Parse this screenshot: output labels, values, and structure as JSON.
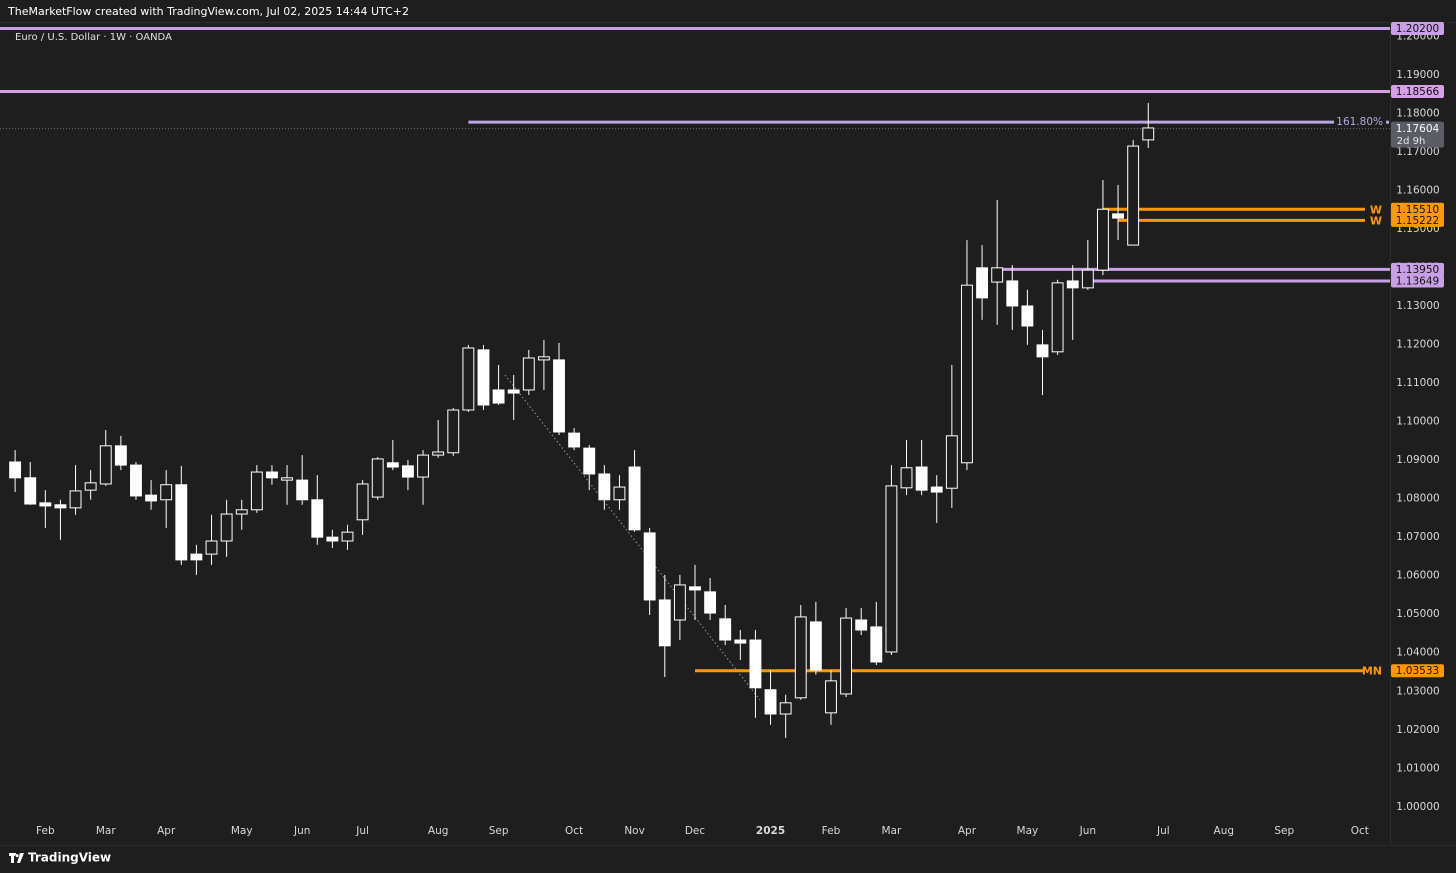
{
  "header": {
    "attribution": "TheMarketFlow created with TradingView.com, Jul 02, 2025 14:44 UTC+2"
  },
  "footer": {
    "brand": "TradingView"
  },
  "chart_data": {
    "type": "candlestick",
    "title": "Euro / U.S. Dollar · 1W · OANDA",
    "x": [
      0,
      1,
      2,
      3,
      4,
      5,
      6,
      7,
      8,
      9,
      10,
      11,
      12,
      13,
      14,
      15,
      16,
      17,
      18,
      19,
      20,
      21,
      22,
      23,
      24,
      25,
      26,
      27,
      28,
      29,
      30,
      31,
      32,
      33,
      34,
      35,
      36,
      37,
      38,
      39,
      40,
      41,
      42,
      43,
      44,
      45,
      46,
      47,
      48,
      49,
      50,
      51,
      52,
      53,
      54,
      55,
      56,
      57,
      58,
      59,
      60,
      61,
      62,
      63,
      64,
      65,
      66,
      67,
      68,
      69,
      70,
      71,
      72,
      73,
      74,
      75
    ],
    "open": [
      1.0895,
      1.0854,
      1.0789,
      1.0784,
      1.0776,
      1.0822,
      1.0838,
      1.0937,
      1.0887,
      1.0809,
      1.0797,
      1.0836,
      1.0656,
      1.0656,
      1.069,
      1.076,
      1.0771,
      1.0869,
      1.0848,
      1.0848,
      1.0797,
      1.07,
      1.069,
      1.0745,
      1.0804,
      1.0893,
      1.0885,
      1.0856,
      1.0913,
      1.0919,
      1.103,
      1.1186,
      1.1082,
      1.1082,
      1.1082,
      1.116,
      1.116,
      1.097,
      1.0931,
      1.0864,
      1.0797,
      1.0882,
      1.0711,
      1.0537,
      1.0485,
      1.0571,
      1.0558,
      1.0488,
      1.0433,
      1.0433,
      1.0304,
      1.0241,
      1.0283,
      1.048,
      1.0244,
      1.0293,
      1.0485,
      1.0467,
      1.0402,
      1.0828,
      1.0882,
      1.083,
      1.0827,
      1.0893,
      1.1399,
      1.1362,
      1.1365,
      1.13,
      1.1199,
      1.1181,
      1.1365,
      1.1347,
      1.1393,
      1.1539,
      1.1458,
      1.1731
    ],
    "high": [
      1.0926,
      1.0895,
      1.0822,
      1.0797,
      1.0887,
      1.0874,
      1.0978,
      1.0963,
      1.0895,
      1.0848,
      1.0874,
      1.0885,
      1.068,
      1.0758,
      1.0797,
      1.0797,
      1.0887,
      1.0887,
      1.0887,
      1.0913,
      1.0861,
      1.0719,
      1.0732,
      1.0848,
      1.0908,
      1.0952,
      1.09,
      1.0926,
      1.1004,
      1.1035,
      1.1199,
      1.1199,
      1.1147,
      1.1121,
      1.1186,
      1.1212,
      1.1204,
      1.0983,
      1.0939,
      1.0887,
      1.0861,
      1.0926,
      1.0724,
      1.0602,
      1.0602,
      1.0628,
      1.0594,
      1.0524,
      1.0459,
      1.0459,
      1.0355,
      1.0291,
      1.0524,
      1.0532,
      1.0355,
      1.0516,
      1.0516,
      1.0532,
      1.0887,
      1.0952,
      1.0952,
      1.0861,
      1.1147,
      1.1471,
      1.1458,
      1.1575,
      1.1406,
      1.1342,
      1.1238,
      1.1368,
      1.1406,
      1.1471,
      1.1627,
      1.1614,
      1.1731,
      1.1827
    ],
    "low": [
      1.0817,
      1.0784,
      1.0724,
      1.0693,
      1.0758,
      1.0797,
      1.0833,
      1.0874,
      1.0797,
      1.0771,
      1.0724,
      1.0628,
      1.0602,
      1.0628,
      1.0649,
      1.0719,
      1.0763,
      1.0836,
      1.0784,
      1.0784,
      1.068,
      1.0672,
      1.0667,
      1.0706,
      1.0797,
      1.0874,
      1.0822,
      1.0784,
      1.0906,
      1.0911,
      1.1025,
      1.103,
      1.1043,
      1.1004,
      1.1069,
      1.1082,
      1.0965,
      1.0926,
      1.0822,
      1.0771,
      1.0771,
      1.0714,
      1.0498,
      1.0337,
      1.0433,
      1.0485,
      1.0485,
      1.042,
      1.0381,
      1.0231,
      1.0213,
      1.0179,
      1.0278,
      1.0343,
      1.0213,
      1.0285,
      1.0446,
      1.0368,
      1.0394,
      1.0809,
      1.0809,
      1.0737,
      1.0776,
      1.0874,
      1.1264,
      1.1251,
      1.1238,
      1.1199,
      1.1069,
      1.1173,
      1.1212,
      1.1342,
      1.138,
      1.1471,
      1.1458,
      1.171
    ],
    "close": [
      1.0854,
      1.0786,
      1.0781,
      1.0776,
      1.082,
      1.0841,
      1.0937,
      1.0887,
      1.0807,
      1.0794,
      1.0836,
      1.0641,
      1.0641,
      1.069,
      1.076,
      1.0771,
      1.0869,
      1.0854,
      1.0854,
      1.0797,
      1.07,
      1.069,
      1.0713,
      1.0838,
      1.0903,
      1.0882,
      1.0856,
      1.0913,
      1.0921,
      1.103,
      1.1191,
      1.1043,
      1.1048,
      1.1074,
      1.1165,
      1.1168,
      1.0973,
      1.0934,
      1.0864,
      1.0797,
      1.083,
      1.0719,
      1.0537,
      1.0418,
      1.0576,
      1.0563,
      1.0503,
      1.0433,
      1.0425,
      1.0309,
      1.0241,
      1.027,
      1.0493,
      1.0355,
      1.0327,
      1.049,
      1.0459,
      1.0376,
      1.0833,
      1.088,
      1.0822,
      1.0817,
      1.0963,
      1.1354,
      1.1321,
      1.1399,
      1.13,
      1.1248,
      1.1168,
      1.136,
      1.1347,
      1.1393,
      1.1551,
      1.1528,
      1.1715,
      1.1762
    ],
    "up_color": "#1e1e1e",
    "down_color": "#ffffff",
    "wick_color": "#ffffff",
    "xlim": [
      -1,
      91
    ],
    "xticks": [
      {
        "value": 2,
        "label": "Feb"
      },
      {
        "value": 6,
        "label": "Mar"
      },
      {
        "value": 10,
        "label": "Apr"
      },
      {
        "value": 15,
        "label": "May"
      },
      {
        "value": 19,
        "label": "Jun"
      },
      {
        "value": 23,
        "label": "Jul"
      },
      {
        "value": 28,
        "label": "Aug"
      },
      {
        "value": 32,
        "label": "Sep"
      },
      {
        "value": 37,
        "label": "Oct"
      },
      {
        "value": 41,
        "label": "Nov"
      },
      {
        "value": 45,
        "label": "Dec"
      },
      {
        "value": 50,
        "label": "2025"
      },
      {
        "value": 54,
        "label": "Feb"
      },
      {
        "value": 58,
        "label": "Mar"
      },
      {
        "value": 63,
        "label": "Apr"
      },
      {
        "value": 67,
        "label": "May"
      },
      {
        "value": 71,
        "label": "Jun"
      },
      {
        "value": 76,
        "label": "Jul"
      },
      {
        "value": 80,
        "label": "Aug"
      },
      {
        "value": 84,
        "label": "Sep"
      },
      {
        "value": 89,
        "label": "Oct"
      }
    ],
    "ylim": [
      0.9901,
      1.2037
    ],
    "yticks": [
      {
        "value": 1.0,
        "label": "1.00000"
      },
      {
        "value": 1.01,
        "label": "1.01000"
      },
      {
        "value": 1.02,
        "label": "1.02000"
      },
      {
        "value": 1.03,
        "label": "1.03000"
      },
      {
        "value": 1.04,
        "label": "1.04000"
      },
      {
        "value": 1.05,
        "label": "1.05000"
      },
      {
        "value": 1.06,
        "label": "1.06000"
      },
      {
        "value": 1.07,
        "label": "1.07000"
      },
      {
        "value": 1.08,
        "label": "1.08000"
      },
      {
        "value": 1.09,
        "label": "1.09000"
      },
      {
        "value": 1.1,
        "label": "1.10000"
      },
      {
        "value": 1.11,
        "label": "1.11000"
      },
      {
        "value": 1.12,
        "label": "1.12000"
      },
      {
        "value": 1.13,
        "label": "1.13000"
      },
      {
        "value": 1.14,
        "label": "1.14000"
      },
      {
        "value": 1.15,
        "label": "1.15000"
      },
      {
        "value": 1.16,
        "label": "1.16000"
      },
      {
        "value": 1.17,
        "label": "1.17000"
      },
      {
        "value": 1.18,
        "label": "1.18000"
      },
      {
        "value": 1.19,
        "label": "1.19000"
      },
      {
        "value": 1.2,
        "label": "1.20000"
      }
    ],
    "grid": false,
    "levels": [
      {
        "value": 1.202,
        "label": "1.20200",
        "color": "#c9a0e6"
      },
      {
        "value": 1.18566,
        "label": "1.18566",
        "color": "#d7a0e6"
      },
      {
        "value": 1.1777,
        "label": "161.80%",
        "color": "#b9a6e3",
        "from": 30,
        "to": 87.3
      },
      {
        "value": 1.1551,
        "label": "1.15510",
        "color": "#ff9800",
        "from": 72,
        "tag": "W"
      },
      {
        "value": 1.15222,
        "label": "1.15222",
        "color": "#ff9800",
        "from": 73,
        "tag": "W"
      },
      {
        "value": 1.1395,
        "label": "1.13950",
        "color": "#c9a0e6",
        "from": 65
      },
      {
        "value": 1.13649,
        "label": "1.13649",
        "color": "#c9a0e6",
        "from": 71
      },
      {
        "value": 1.03533,
        "label": "1.03533",
        "color": "#ff9800",
        "from": 45,
        "tag": "MN"
      }
    ],
    "current_price": {
      "value": 1.17604,
      "label": "1.17604",
      "countdown": "2d 9h",
      "color": "#5a5d66"
    }
  }
}
